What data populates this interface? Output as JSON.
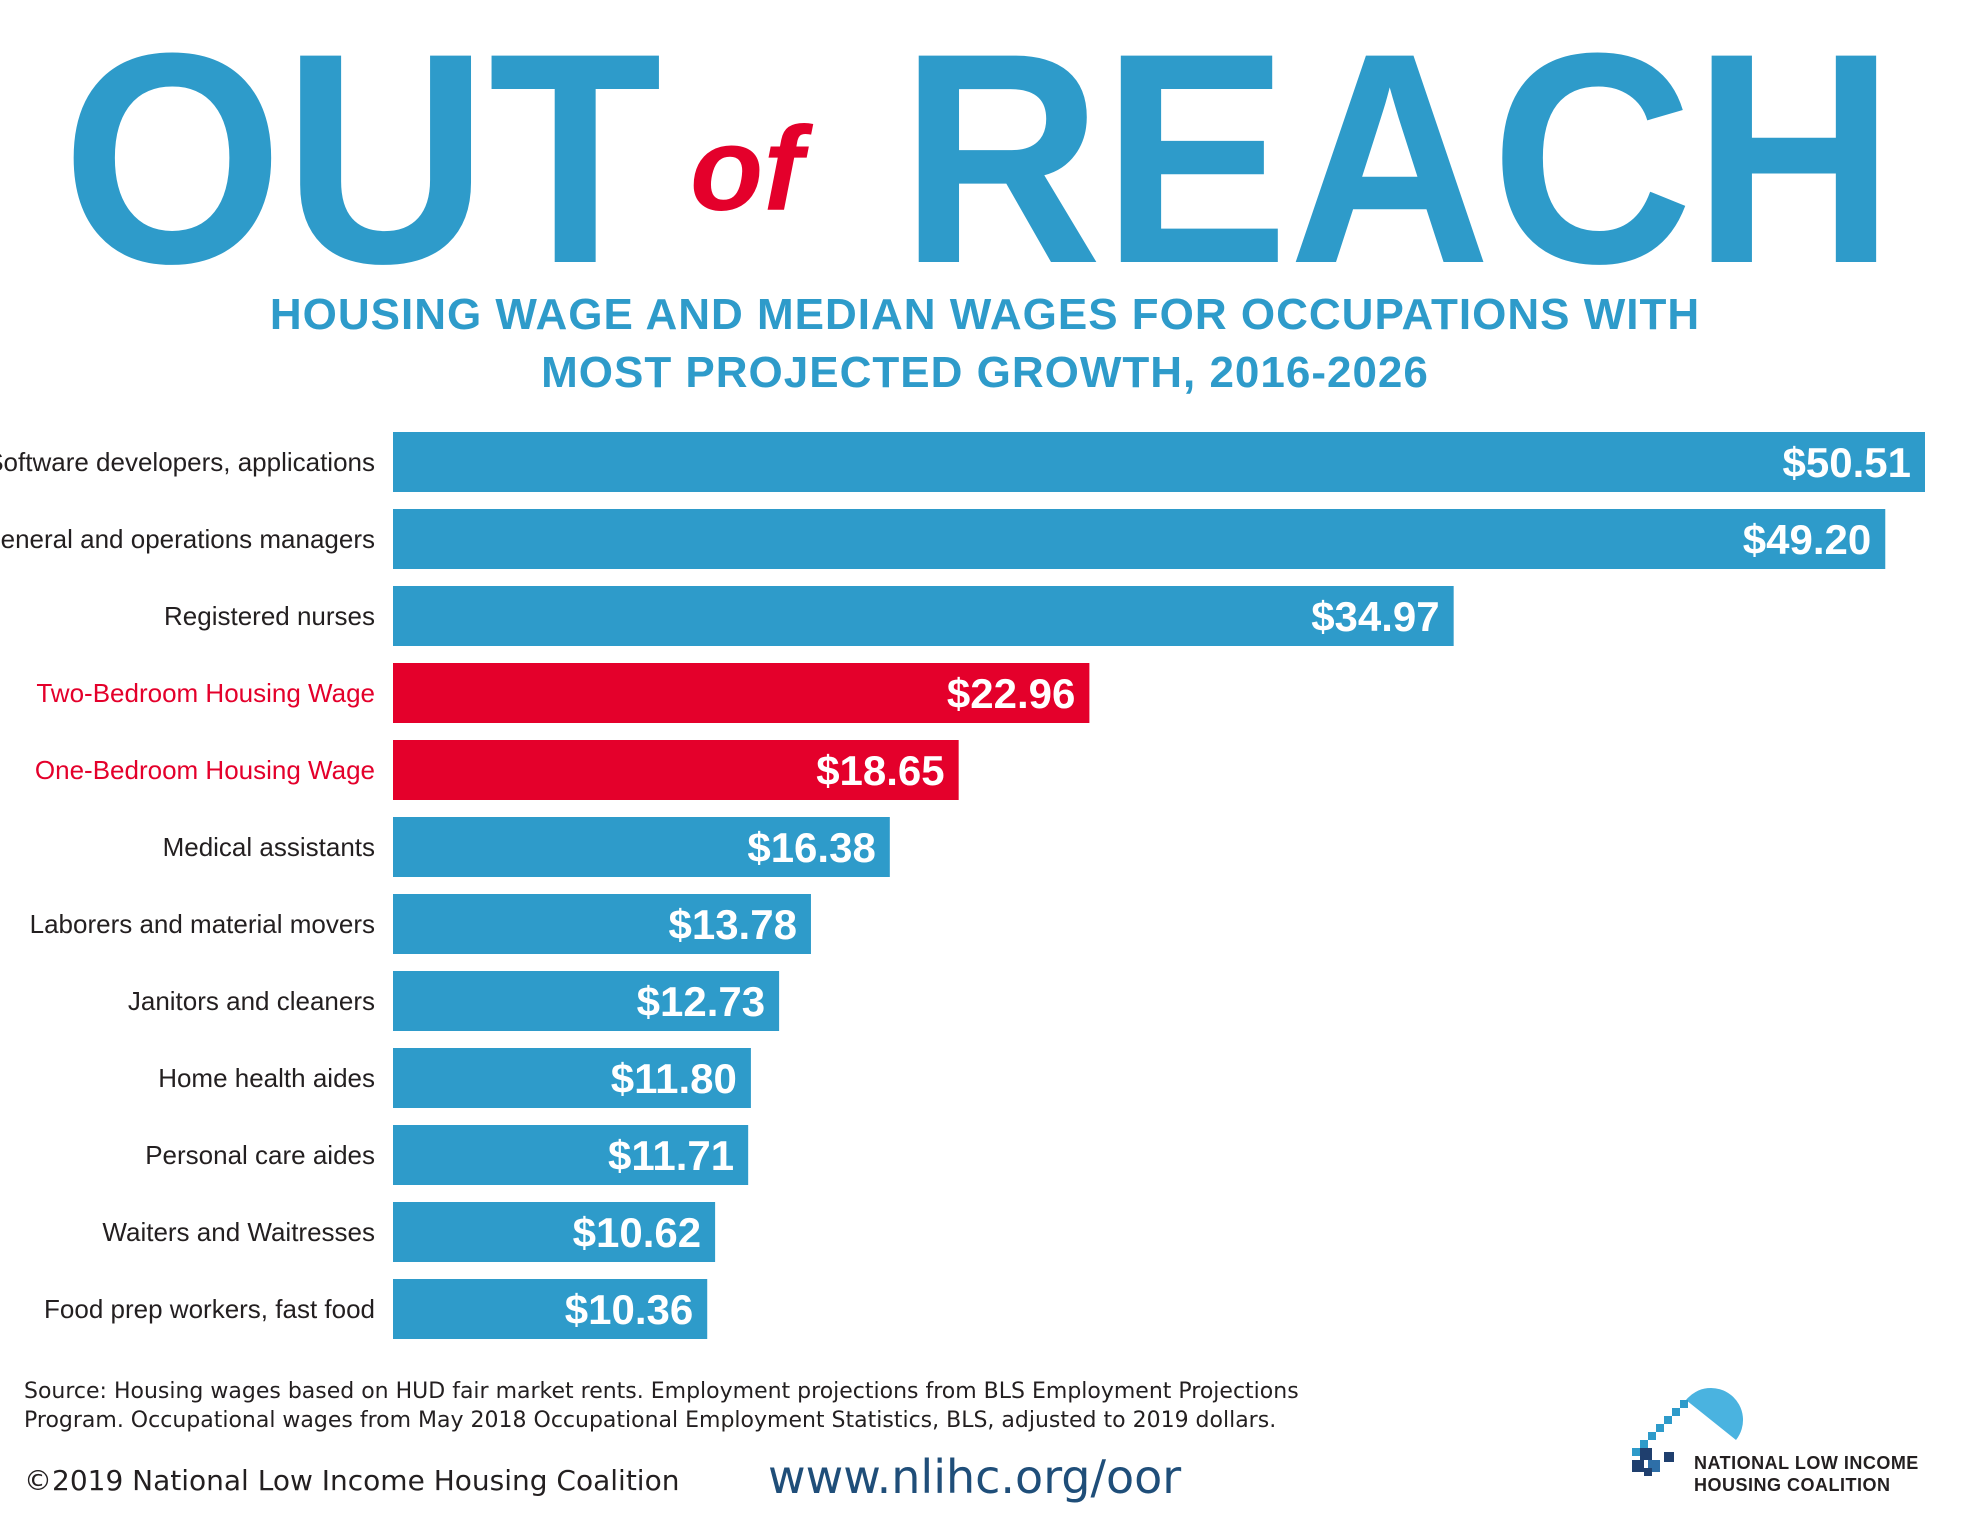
{
  "header": {
    "title_left": "OUT",
    "title_middle": "of",
    "title_right": "REACH",
    "subtitle_line1": "HOUSING WAGE AND MEDIAN WAGES FOR OCCUPATIONS WITH",
    "subtitle_line2": "MOST PROJECTED GROWTH, 2016-2026"
  },
  "colors": {
    "accent_blue": "#2e9bca",
    "highlight_red": "#e4002b",
    "text_dark": "#231f20",
    "url_navy": "#1f4e79"
  },
  "chart_data": {
    "type": "bar",
    "orientation": "horizontal",
    "title": "HOUSING WAGE AND MEDIAN WAGES FOR OCCUPATIONS WITH MOST PROJECTED GROWTH, 2016-2026",
    "categories": [
      "Software developers, applications",
      "General and operations managers",
      "Registered nurses",
      "Two-Bedroom Housing Wage",
      "One-Bedroom Housing Wage",
      "Medical assistants",
      "Laborers and material movers",
      "Janitors and cleaners",
      "Home health aides",
      "Personal care aides",
      "Waiters and Waitresses",
      "Food prep workers, fast food"
    ],
    "values": [
      50.51,
      49.2,
      34.97,
      22.96,
      18.65,
      16.38,
      13.78,
      12.73,
      11.8,
      11.71,
      10.62,
      10.36
    ],
    "value_labels": [
      "$50.51",
      "$49.20",
      "$34.97",
      "$22.96",
      "$18.65",
      "$16.38",
      "$13.78",
      "$12.73",
      "$11.80",
      "$11.71",
      "$10.62",
      "$10.36"
    ],
    "highlighted": [
      false,
      false,
      false,
      true,
      true,
      false,
      false,
      false,
      false,
      false,
      false,
      false
    ],
    "xlim": [
      0,
      50.51
    ],
    "grid": false,
    "legend": "none"
  },
  "footer": {
    "source_line1": "Source: Housing wages based on HUD fair market rents. Employment projections from BLS Employment Projections",
    "source_line2": "Program.  Occupational wages from May 2018 Occupational Employment Statistics, BLS, adjusted to 2019 dollars.",
    "copyright": "©2019 National Low Income Housing Coalition",
    "url": "www.nlihc.org/oor",
    "logo_line1": "NATIONAL LOW INCOME",
    "logo_line2": "HOUSING COALITION",
    "logo_icon": "house-icon"
  }
}
